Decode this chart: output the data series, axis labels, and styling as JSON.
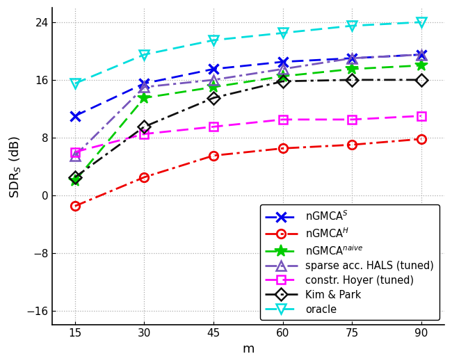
{
  "x": [
    15,
    30,
    45,
    60,
    75,
    90
  ],
  "series": {
    "nGMCA_S": {
      "values": [
        11.0,
        15.5,
        17.5,
        18.5,
        19.0,
        19.5
      ],
      "color": "#0000EE",
      "linestyle": "--",
      "marker": "x",
      "markersize": 10,
      "markeredgewidth": 2.5,
      "linewidth": 2.0,
      "label": "nGMCA$^S$",
      "dashes": [
        6,
        3
      ]
    },
    "nGMCA_H": {
      "values": [
        -1.5,
        2.5,
        5.5,
        6.5,
        7.0,
        7.8
      ],
      "color": "#EE0000",
      "linestyle": "-.",
      "marker": "o",
      "markersize": 9,
      "markeredgewidth": 2.0,
      "linewidth": 2.0,
      "label": "nGMCA$^H$",
      "dashes": [
        6,
        2,
        1.5,
        2
      ]
    },
    "nGMCA_naive": {
      "values": [
        2.0,
        13.5,
        15.0,
        16.5,
        17.5,
        18.0
      ],
      "color": "#00CC00",
      "linestyle": "--",
      "marker": "*",
      "markersize": 13,
      "markeredgewidth": 1.5,
      "linewidth": 2.0,
      "label": "nGMCA$^{naive}$",
      "dashes": [
        6,
        3
      ]
    },
    "sparse_acc_HALS": {
      "values": [
        5.5,
        15.0,
        16.0,
        17.5,
        19.0,
        19.5
      ],
      "color": "#7755BB",
      "linestyle": "-.",
      "marker": "^",
      "markersize": 10,
      "markeredgewidth": 1.8,
      "linewidth": 2.0,
      "label": "sparse acc. HALS (tuned)",
      "dashes": [
        6,
        2,
        1.5,
        2
      ]
    },
    "constr_Hoyer": {
      "values": [
        6.0,
        8.5,
        9.5,
        10.5,
        10.5,
        11.0
      ],
      "color": "#FF00FF",
      "linestyle": "--",
      "marker": "s",
      "markersize": 9,
      "markeredgewidth": 1.8,
      "linewidth": 2.0,
      "label": "constr. Hoyer (tuned)",
      "dashes": [
        6,
        3
      ]
    },
    "Kim_Park": {
      "values": [
        2.5,
        9.5,
        13.5,
        15.8,
        16.0,
        16.0
      ],
      "color": "#111111",
      "linestyle": "-.",
      "marker": "D",
      "markersize": 9,
      "markeredgewidth": 1.8,
      "linewidth": 2.0,
      "label": "Kim & Park",
      "dashes": [
        6,
        2,
        1.5,
        2
      ]
    },
    "oracle": {
      "values": [
        15.5,
        19.5,
        21.5,
        22.5,
        23.5,
        24.0
      ],
      "color": "#00DDDD",
      "linestyle": "--",
      "marker": "v",
      "markersize": 10,
      "markeredgewidth": 1.8,
      "linewidth": 2.0,
      "label": "oracle",
      "dashes": [
        6,
        3
      ]
    }
  },
  "series_order": [
    "nGMCA_S",
    "nGMCA_H",
    "nGMCA_naive",
    "sparse_acc_HALS",
    "constr_Hoyer",
    "Kim_Park",
    "oracle"
  ],
  "xlabel": "m",
  "ylabel": "SDR$_S$ (dB)",
  "xlim": [
    10,
    95
  ],
  "ylim": [
    -18,
    26
  ],
  "yticks": [
    -16,
    -8,
    0,
    8,
    16,
    24
  ],
  "xticks": [
    15,
    30,
    45,
    60,
    75,
    90
  ],
  "grid_color": "#AAAAAA",
  "background_color": "#FFFFFF",
  "legend_fontsize": 10.5,
  "axis_fontsize": 13,
  "tick_fontsize": 11
}
